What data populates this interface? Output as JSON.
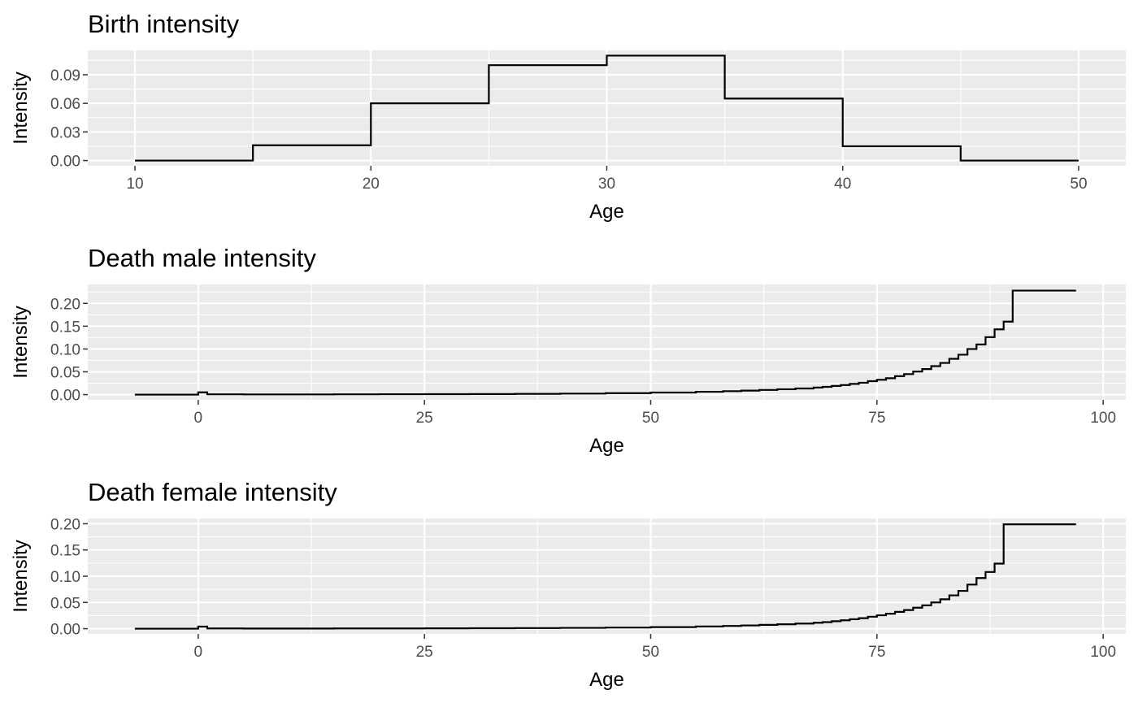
{
  "chart_data": [
    {
      "type": "line",
      "step": true,
      "title": "Birth intensity",
      "xlabel": "Age",
      "ylabel": "Intensity",
      "xlim": [
        8,
        52
      ],
      "ylim": [
        -0.0055,
        0.1155
      ],
      "xticks": [
        10,
        20,
        30,
        40,
        50
      ],
      "xtick_labels": [
        "10",
        "20",
        "30",
        "40",
        "50"
      ],
      "yticks": [
        0,
        0.03,
        0.06,
        0.09
      ],
      "ytick_labels": [
        "0.00",
        "0.03",
        "0.06",
        "0.09"
      ],
      "grid": true,
      "series": [
        {
          "x": [
            10,
            15,
            20,
            25,
            30,
            35,
            40,
            45,
            50
          ],
          "y": [
            0.0,
            0.016,
            0.06,
            0.1,
            0.11,
            0.065,
            0.015,
            0.0,
            0.0
          ]
        }
      ]
    },
    {
      "type": "line",
      "step": true,
      "title": "Death male intensity",
      "xlabel": "Age",
      "ylabel": "Intensity",
      "xlim": [
        -12.2,
        102.5
      ],
      "ylim": [
        -0.0115,
        0.2415
      ],
      "xticks": [
        0,
        25,
        50,
        75,
        100
      ],
      "xtick_labels": [
        "0",
        "25",
        "50",
        "75",
        "100"
      ],
      "yticks": [
        0,
        0.05,
        0.1,
        0.15,
        0.2
      ],
      "ytick_labels": [
        "0.00",
        "0.05",
        "0.10",
        "0.15",
        "0.20"
      ],
      "grid": true,
      "series": [
        {
          "x": [
            -7,
            0,
            1,
            5,
            10,
            15,
            20,
            25,
            30,
            35,
            40,
            45,
            50,
            55,
            58,
            60,
            62,
            64,
            66,
            68,
            69,
            70,
            71,
            72,
            73,
            74,
            75,
            76,
            77,
            78,
            79,
            80,
            81,
            82,
            83,
            84,
            85,
            86,
            87,
            88,
            89,
            90,
            97
          ],
          "y": [
            0.0,
            0.005,
            0.0006,
            0.0004,
            0.0004,
            0.0006,
            0.0009,
            0.001,
            0.0012,
            0.0016,
            0.0022,
            0.0032,
            0.0045,
            0.0062,
            0.0075,
            0.0088,
            0.0102,
            0.0118,
            0.0135,
            0.0155,
            0.017,
            0.019,
            0.021,
            0.0235,
            0.026,
            0.0295,
            0.0325,
            0.036,
            0.0405,
            0.045,
            0.0505,
            0.056,
            0.0625,
            0.0695,
            0.0785,
            0.0875,
            0.1,
            0.11,
            0.126,
            0.143,
            0.16,
            0.228,
            0.228
          ]
        }
      ]
    },
    {
      "type": "line",
      "step": true,
      "title": "Death female intensity",
      "xlabel": "Age",
      "ylabel": "Intensity",
      "xlim": [
        -12.2,
        102.5
      ],
      "ylim": [
        -0.01,
        0.21
      ],
      "xticks": [
        0,
        25,
        50,
        75,
        100
      ],
      "xtick_labels": [
        "0",
        "25",
        "50",
        "75",
        "100"
      ],
      "yticks": [
        0,
        0.05,
        0.1,
        0.15,
        0.2
      ],
      "ytick_labels": [
        "0.00",
        "0.05",
        "0.10",
        "0.15",
        "0.20"
      ],
      "grid": true,
      "series": [
        {
          "x": [
            -7,
            0,
            1,
            5,
            10,
            15,
            20,
            25,
            30,
            35,
            40,
            45,
            50,
            55,
            58,
            60,
            62,
            64,
            66,
            68,
            69,
            70,
            71,
            72,
            73,
            74,
            75,
            76,
            77,
            78,
            79,
            80,
            81,
            82,
            83,
            84,
            85,
            86,
            87,
            88,
            89,
            90,
            97
          ],
          "y": [
            0.0,
            0.004,
            0.0004,
            0.0003,
            0.0003,
            0.0004,
            0.0005,
            0.0006,
            0.0008,
            0.0011,
            0.0015,
            0.0021,
            0.003,
            0.0042,
            0.0052,
            0.0062,
            0.0072,
            0.0084,
            0.0098,
            0.0113,
            0.0125,
            0.0142,
            0.016,
            0.018,
            0.02,
            0.0228,
            0.0255,
            0.0285,
            0.032,
            0.0355,
            0.04,
            0.0445,
            0.05,
            0.056,
            0.0635,
            0.072,
            0.084,
            0.0965,
            0.108,
            0.124,
            0.199,
            0.199,
            0.199
          ]
        }
      ]
    }
  ]
}
